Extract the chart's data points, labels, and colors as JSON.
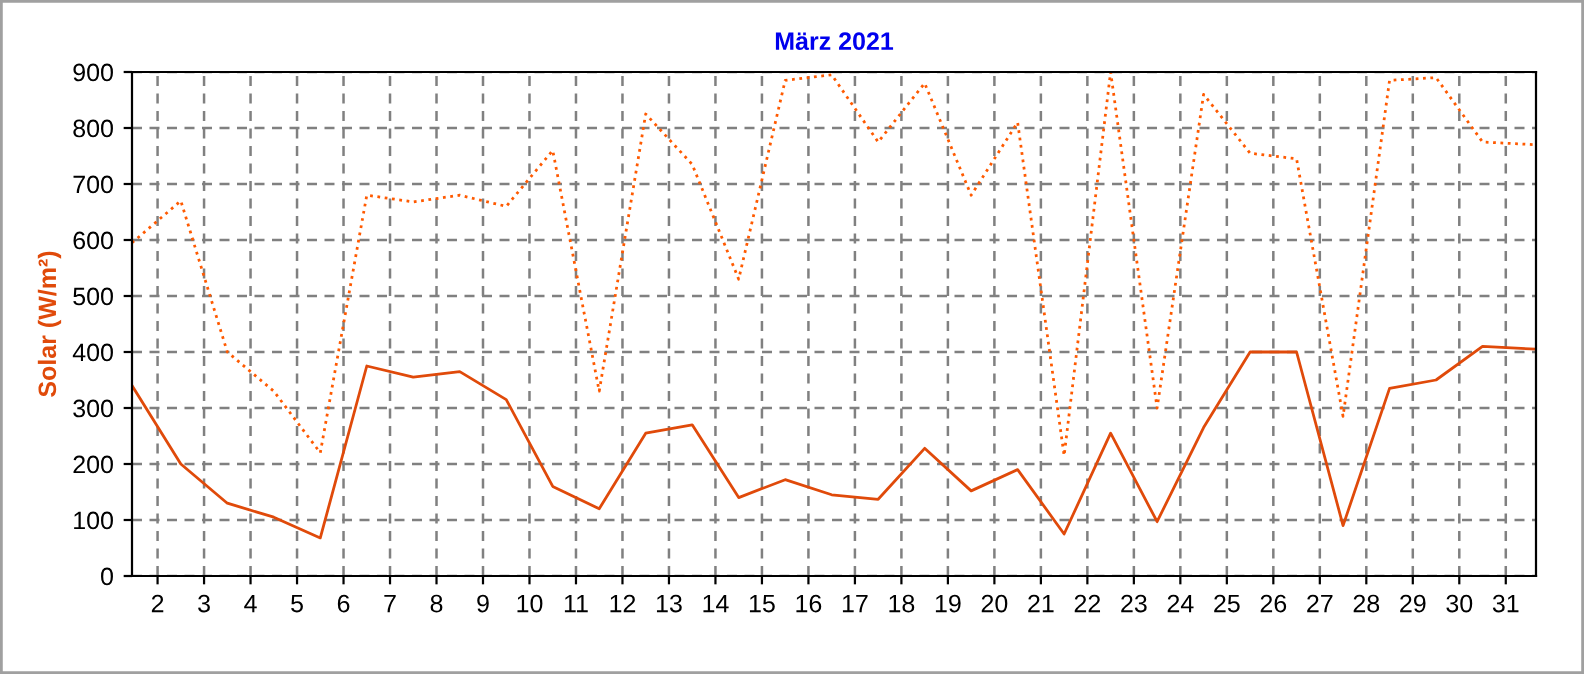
{
  "chart_data": {
    "type": "line",
    "title": "März 2021",
    "ylabel": "Solar (W/m²)",
    "x": [
      1.45,
      2.5,
      3.5,
      4.5,
      5.5,
      6.5,
      7.5,
      8.5,
      9.5,
      10.5,
      11.5,
      12.5,
      13.5,
      14.5,
      15.5,
      16.5,
      17.5,
      18.5,
      19.5,
      20.5,
      21.5,
      22.5,
      23.5,
      24.5,
      25.5,
      26.5,
      27.5,
      28.5,
      29.5,
      30.5,
      31.65
    ],
    "series": [
      {
        "color": "#e04a0a",
        "line_style": "solid",
        "values": [
          340,
          200,
          130,
          105,
          68,
          375,
          355,
          365,
          315,
          160,
          120,
          255,
          270,
          140,
          172,
          145,
          137,
          228,
          152,
          190,
          75,
          255,
          97,
          265,
          400,
          400,
          90,
          335,
          350,
          410,
          405
        ]
      },
      {
        "color": "#ff5a00",
        "line_style": "dotted",
        "values": [
          595,
          670,
          400,
          330,
          220,
          680,
          668,
          680,
          660,
          760,
          330,
          825,
          735,
          530,
          885,
          895,
          775,
          880,
          680,
          810,
          215,
          900,
          300,
          860,
          755,
          745,
          285,
          885,
          890,
          775,
          770
        ]
      }
    ],
    "xlim": [
      1.45,
      31.65
    ],
    "xticks": [
      2,
      3,
      4,
      5,
      6,
      7,
      8,
      9,
      10,
      11,
      12,
      13,
      14,
      15,
      16,
      17,
      18,
      19,
      20,
      21,
      22,
      23,
      24,
      25,
      26,
      27,
      28,
      29,
      30,
      31
    ],
    "ylim": [
      0,
      900
    ],
    "yticks": [
      0,
      100,
      200,
      300,
      400,
      500,
      600,
      700,
      800,
      900
    ],
    "grid": true,
    "marker": "none"
  }
}
